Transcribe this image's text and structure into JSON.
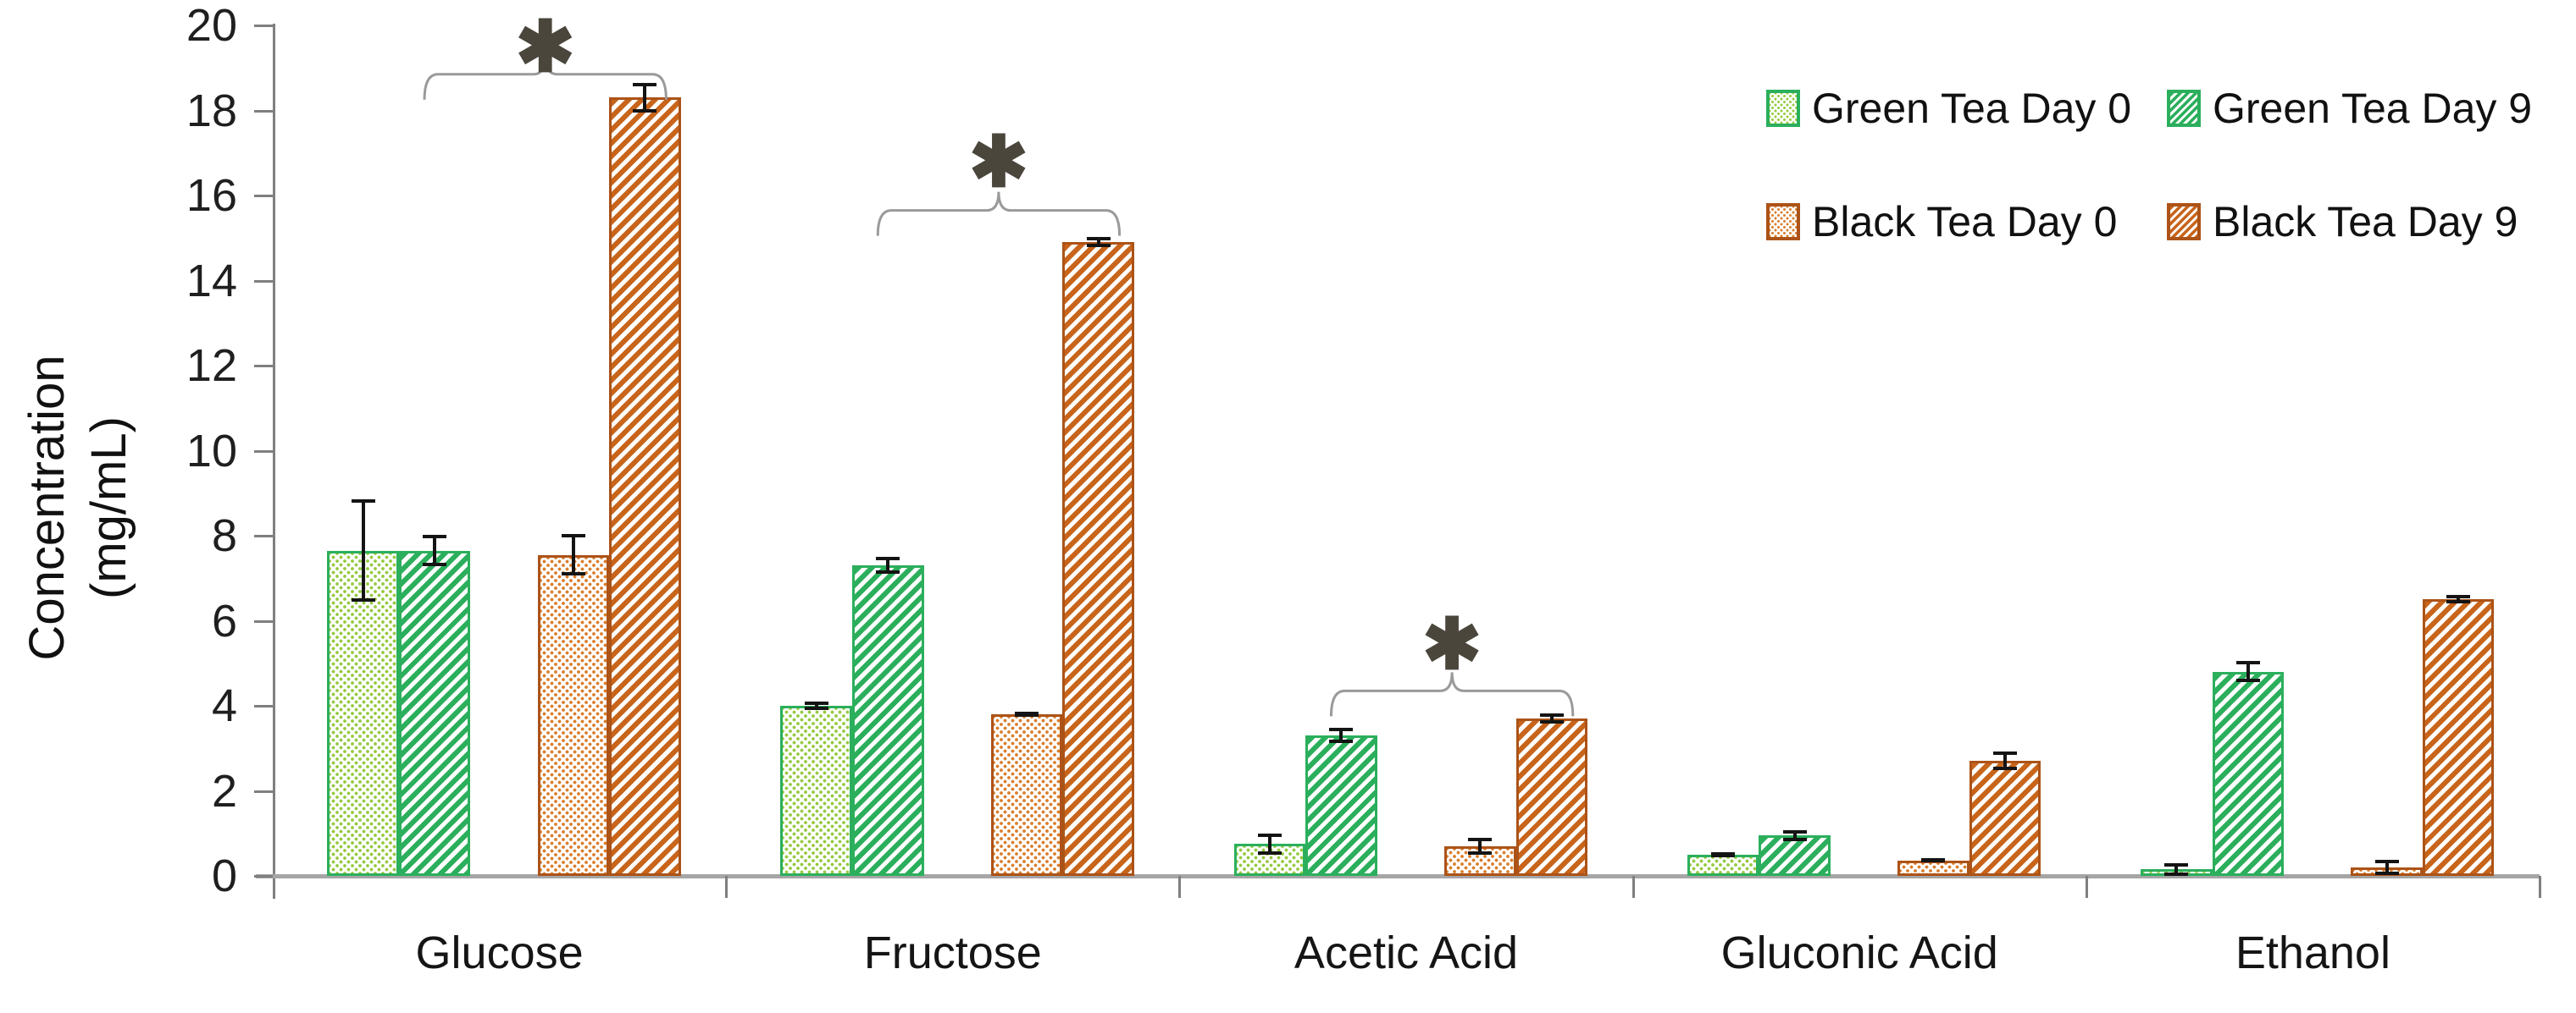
{
  "chart_data": {
    "type": "bar",
    "title": "",
    "ylabel": "Concentration (mg/mL)",
    "ylabel_lines": [
      "Concentration",
      "(mg/mL)"
    ],
    "xlabel": "",
    "ylim": [
      0,
      20
    ],
    "yticks": [
      0,
      2,
      4,
      6,
      8,
      10,
      12,
      14,
      16,
      18,
      20
    ],
    "grid": false,
    "legend_position": "top-right",
    "categories": [
      "Glucose",
      "Fructose",
      "Acetic Acid",
      "Gluconic Acid",
      "Ethanol"
    ],
    "series": [
      {
        "name": "Green Tea Day 0",
        "pattern": "dots",
        "border_color": "#2baf5c",
        "fill_color": "#97cb44",
        "values": [
          7.65,
          4.0,
          0.75,
          0.5,
          0.15
        ],
        "errors": [
          1.2,
          0.1,
          0.25,
          0.06,
          0.15
        ]
      },
      {
        "name": "Green Tea Day 9",
        "pattern": "hatch",
        "border_color": "#2baf5c",
        "fill_color": "#2baf5c",
        "values": [
          7.65,
          7.3,
          3.3,
          0.95,
          4.8
        ],
        "errors": [
          0.37,
          0.2,
          0.18,
          0.13,
          0.25
        ]
      },
      {
        "name": "Black Tea Day 0",
        "pattern": "dots",
        "border_color": "#ac5317",
        "fill_color": "#db8030",
        "values": [
          7.55,
          3.8,
          0.7,
          0.36,
          0.2
        ],
        "errors": [
          0.48,
          0.06,
          0.2,
          0.05,
          0.18
        ]
      },
      {
        "name": "Black Tea Day 9",
        "pattern": "hatch",
        "border_color": "#ac5317",
        "fill_color": "#c8651b",
        "values": [
          18.3,
          14.9,
          3.7,
          2.7,
          6.5
        ],
        "errors": [
          0.35,
          0.12,
          0.12,
          0.22,
          0.1
        ]
      }
    ],
    "significance_brackets": [
      {
        "category": "Glucose",
        "label": "*",
        "from_series": "Green Tea Day 9",
        "to_series": "Black Tea Day 9",
        "bracket_value": 18.85,
        "label_value": 19.5
      },
      {
        "category": "Fructose",
        "label": "*",
        "from_series": "Green Tea Day 9",
        "to_series": "Black Tea Day 9",
        "bracket_value": 15.65,
        "label_value": 16.8
      },
      {
        "category": "Acetic Acid",
        "label": "*",
        "from_series": "Green Tea Day 9",
        "to_series": "Black Tea Day 9",
        "bracket_value": 4.35,
        "label_value": 5.45
      }
    ]
  }
}
